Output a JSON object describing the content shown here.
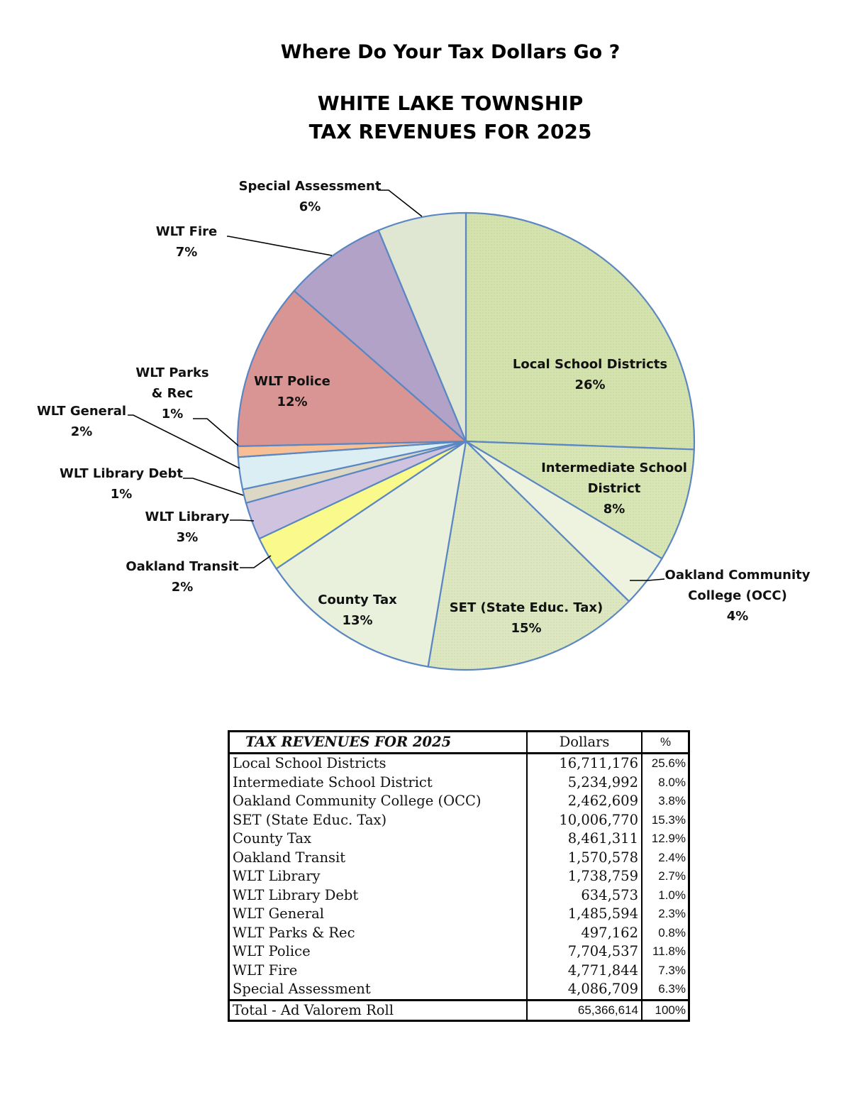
{
  "headline": "Where Do Your Tax Dollars Go ?",
  "chart_data": {
    "type": "pie",
    "title": [
      "WHITE LAKE TOWNSHIP",
      "TAX REVENUES FOR 2025"
    ],
    "slices": [
      {
        "name": "Local School Districts",
        "label_lines": [
          "Local School Districts"
        ],
        "pct_label": "26%",
        "value": 16711176,
        "color": "#d4e2ae"
      },
      {
        "name": "Intermediate School District",
        "label_lines": [
          "Intermediate School",
          "District"
        ],
        "pct_label": "8%",
        "value": 5234992,
        "color": "#d8e6b6"
      },
      {
        "name": "Oakland Community College (OCC)",
        "label_lines": [
          "Oakland Community",
          "College (OCC)"
        ],
        "pct_label": "4%",
        "value": 2462609,
        "color": "#eef3e0"
      },
      {
        "name": "SET (State Educ. Tax)",
        "label_lines": [
          "SET (State Educ. Tax)"
        ],
        "pct_label": "15%",
        "value": 10006770,
        "color": "#dde8c2"
      },
      {
        "name": "County Tax",
        "label_lines": [
          "County Tax"
        ],
        "pct_label": "13%",
        "value": 8461311,
        "color": "#e9f0dc"
      },
      {
        "name": "Oakland Transit",
        "label_lines": [
          "Oakland Transit"
        ],
        "pct_label": "2%",
        "value": 1570578,
        "color": "#fafa8c"
      },
      {
        "name": "WLT Library",
        "label_lines": [
          "WLT Library"
        ],
        "pct_label": "3%",
        "value": 1738759,
        "color": "#cfc3e0"
      },
      {
        "name": "WLT Library Debt",
        "label_lines": [
          "WLT Library Debt"
        ],
        "pct_label": "1%",
        "value": 634573,
        "color": "#ddd8c6"
      },
      {
        "name": "WLT General",
        "label_lines": [
          "WLT General"
        ],
        "pct_label": "2%",
        "value": 1485594,
        "color": "#daeef4"
      },
      {
        "name": "WLT Parks & Rec",
        "label_lines": [
          "WLT Parks",
          "& Rec"
        ],
        "pct_label": "1%",
        "value": 497162,
        "color": "#f9bf94"
      },
      {
        "name": "WLT Police",
        "label_lines": [
          "WLT Police"
        ],
        "pct_label": "12%",
        "value": 7704537,
        "color": "#d99593"
      },
      {
        "name": "WLT Fire",
        "label_lines": [
          "WLT Fire"
        ],
        "pct_label": "7%",
        "value": 4771844,
        "color": "#b2a2c8"
      },
      {
        "name": "Special Assessment",
        "label_lines": [
          "Special Assessment"
        ],
        "pct_label": "6%",
        "value": 4086709,
        "color": "#dfe6d1"
      }
    ],
    "edge_color": "#5a86c2"
  },
  "table": {
    "header": {
      "title": "TAX REVENUES FOR 2025",
      "dollars": "Dollars",
      "pct": "%"
    },
    "rows": [
      {
        "name": "Local School Districts",
        "dollars": "16,711,176",
        "pct": "25.6%"
      },
      {
        "name": "Intermediate School District",
        "dollars": "5,234,992",
        "pct": "8.0%"
      },
      {
        "name": "Oakland Community College (OCC)",
        "dollars": "2,462,609",
        "pct": "3.8%"
      },
      {
        "name": "SET (State Educ. Tax)",
        "dollars": "10,006,770",
        "pct": "15.3%"
      },
      {
        "name": "County Tax",
        "dollars": "8,461,311",
        "pct": "12.9%"
      },
      {
        "name": "Oakland Transit",
        "dollars": "1,570,578",
        "pct": "2.4%"
      },
      {
        "name": "WLT Library",
        "dollars": "1,738,759",
        "pct": "2.7%"
      },
      {
        "name": "WLT Library Debt",
        "dollars": "634,573",
        "pct": "1.0%"
      },
      {
        "name": "WLT General",
        "dollars": "1,485,594",
        "pct": "2.3%"
      },
      {
        "name": "WLT Parks & Rec",
        "dollars": "497,162",
        "pct": "0.8%"
      },
      {
        "name": "WLT Police",
        "dollars": "7,704,537",
        "pct": "11.8%"
      },
      {
        "name": "WLT Fire",
        "dollars": "4,771,844",
        "pct": "7.3%"
      },
      {
        "name": "Special Assessment",
        "dollars": "4,086,709",
        "pct": "6.3%"
      }
    ],
    "total": {
      "name": "Total - Ad Valorem Roll",
      "dollars": "65,366,614",
      "pct": "100%"
    }
  }
}
